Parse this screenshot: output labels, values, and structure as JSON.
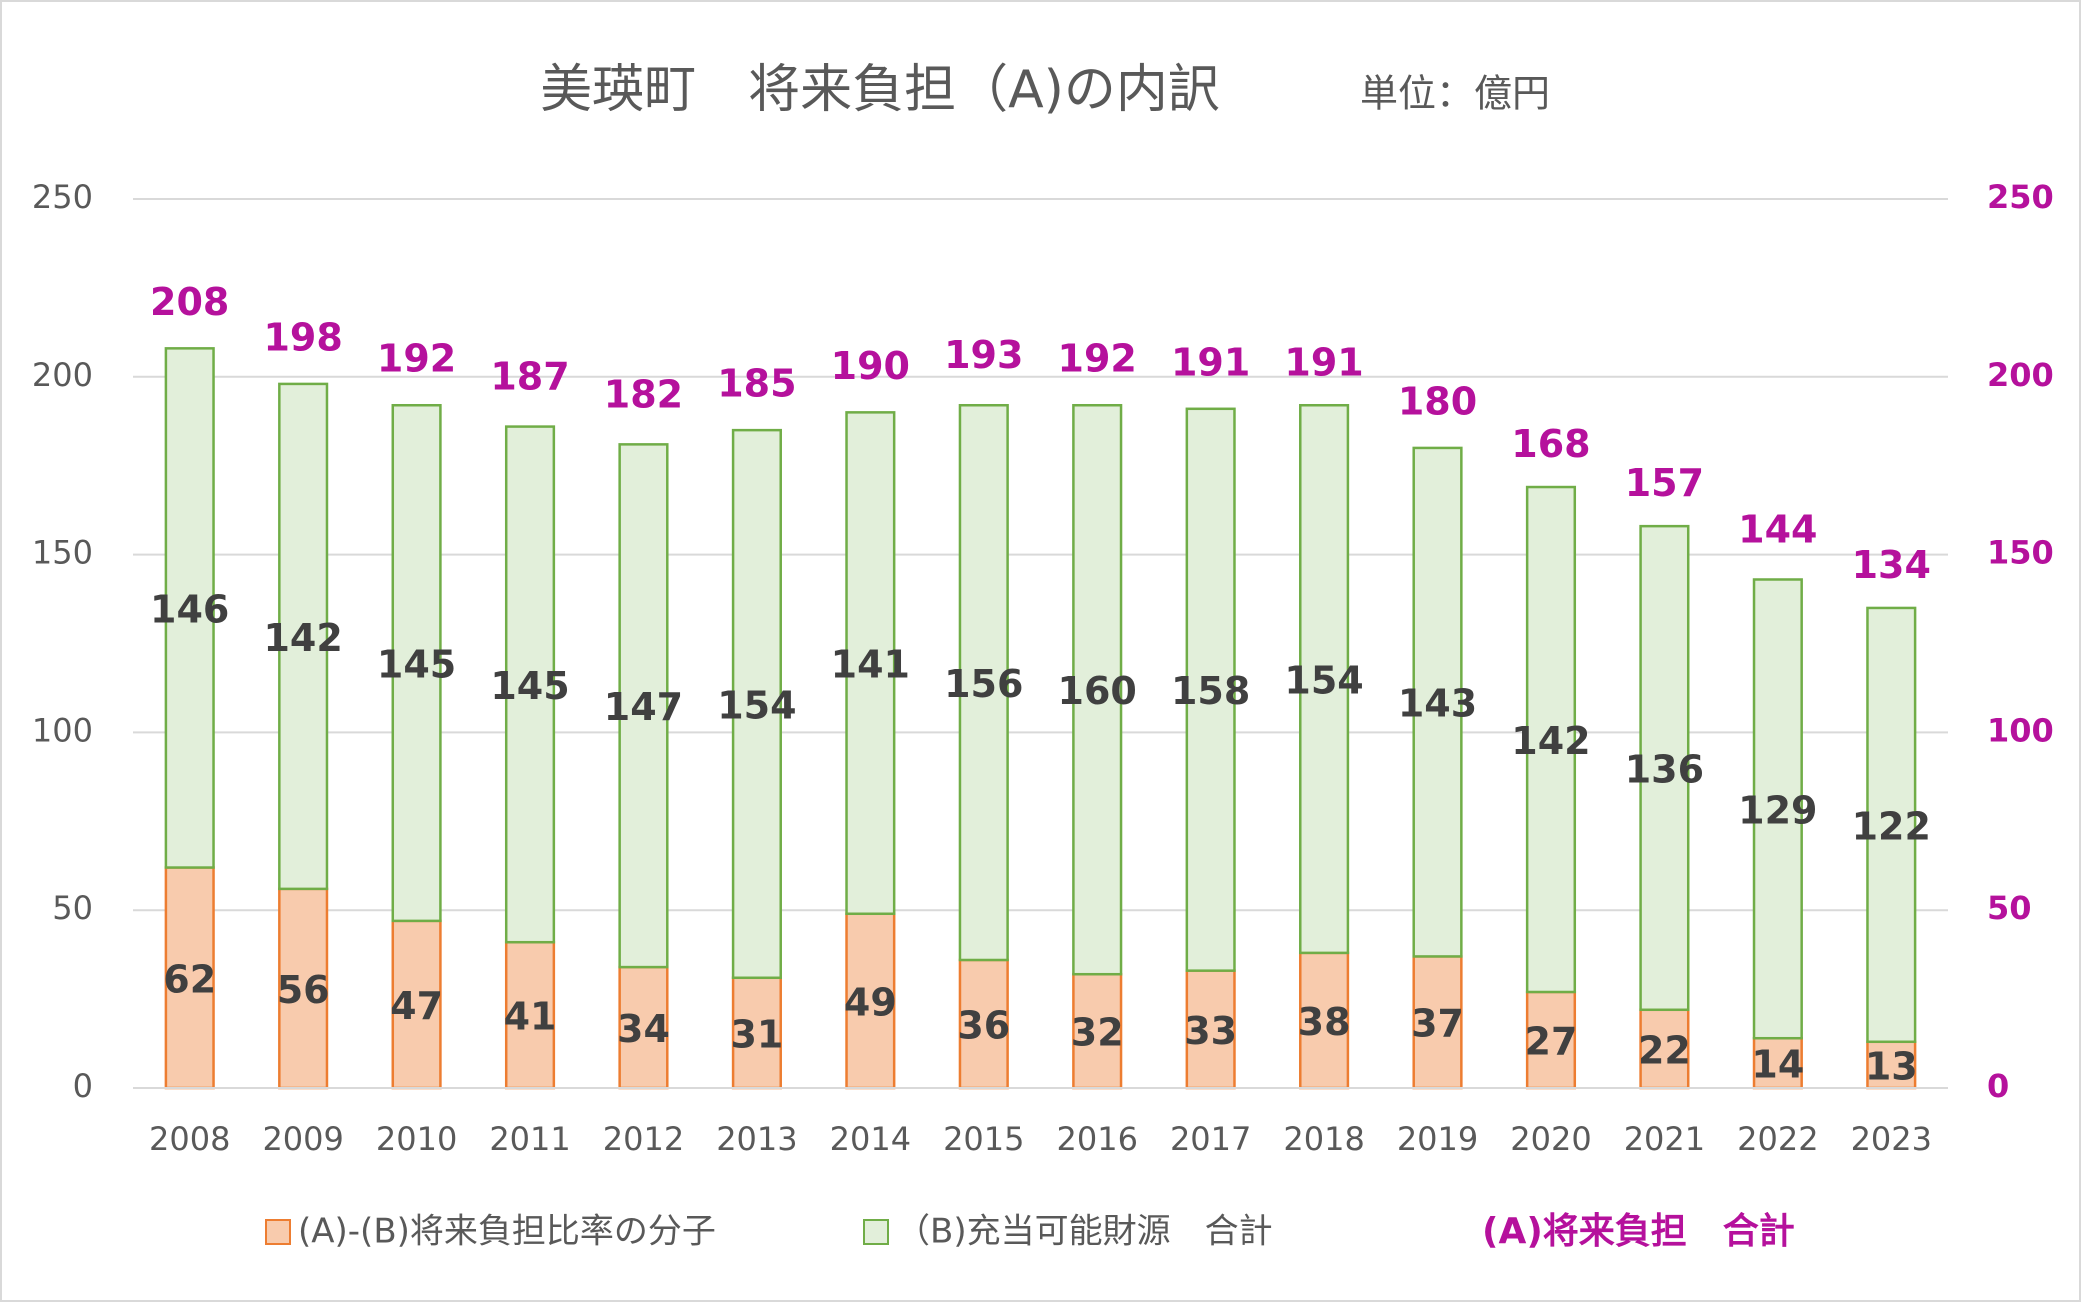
{
  "chart_data": {
    "type": "stacked_bar",
    "title": "美瑛町　将来負担（A)の内訳",
    "subtitle": "単位：億円",
    "categories": [
      "2008",
      "2009",
      "2010",
      "2011",
      "2012",
      "2013",
      "2014",
      "2015",
      "2016",
      "2017",
      "2018",
      "2019",
      "2020",
      "2021",
      "2022",
      "2023"
    ],
    "series": [
      {
        "name": "(A)-(B)将来負担比率の分子",
        "color": "#f8cbad",
        "edge": "#ed7d31",
        "values": [
          62,
          56,
          47,
          41,
          34,
          31,
          49,
          36,
          32,
          33,
          38,
          37,
          27,
          22,
          14,
          13
        ]
      },
      {
        "name": "（B)充当可能財源　合計",
        "color": "#e2efda",
        "edge": "#70ad47",
        "values": [
          146,
          142,
          145,
          145,
          147,
          154,
          141,
          156,
          160,
          158,
          154,
          143,
          142,
          136,
          129,
          122
        ]
      },
      {
        "name": "(A)将来負担　合計",
        "color": "#b5119c",
        "axis": "y2",
        "values": [
          208,
          198,
          192,
          187,
          182,
          185,
          190,
          193,
          192,
          191,
          191,
          180,
          168,
          157,
          144,
          134
        ]
      }
    ],
    "ylim": [
      0,
      250
    ],
    "yticks": [
      0,
      50,
      100,
      150,
      200,
      250
    ],
    "y2lim": [
      0,
      250
    ],
    "y2ticks": [
      0,
      50,
      100,
      150,
      200,
      250
    ],
    "grid": true
  }
}
